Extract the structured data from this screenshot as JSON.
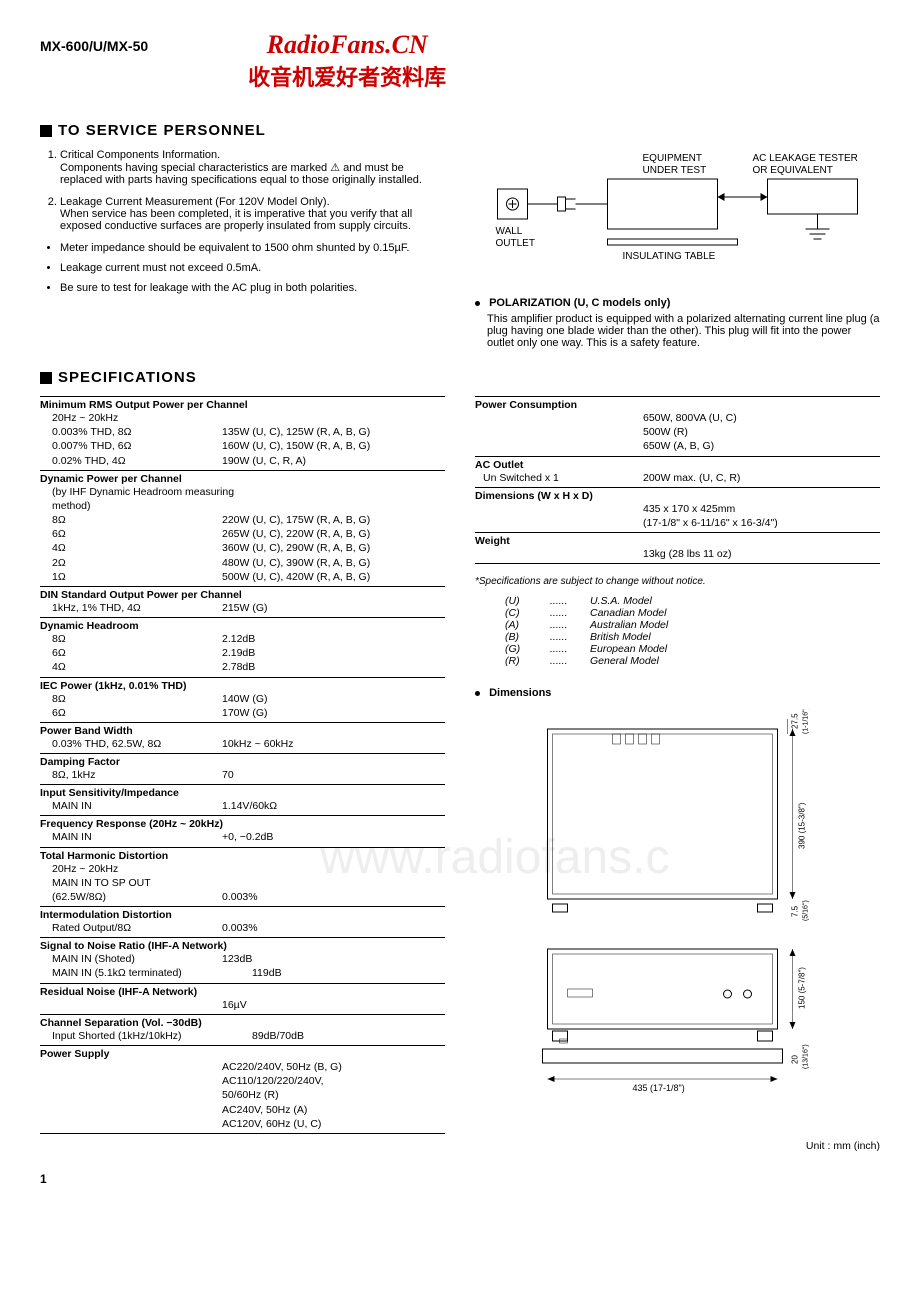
{
  "header": {
    "model": "MX-600/U/MX-50",
    "watermark_main": "RadioFans.CN",
    "watermark_sub": "收音机爱好者资料库"
  },
  "bg_watermark": "www.radiofans.c",
  "sections": {
    "service_title": "TO SERVICE PERSONNEL",
    "spec_title": "SPECIFICATIONS"
  },
  "service": {
    "item1_title": "Critical Components Information.",
    "item1_body": "Components having special characteristics are marked ⚠ and must be replaced with parts having specifications equal to those originally installed.",
    "item2_title": "Leakage Current Measurement (For 120V Model Only).",
    "item2_body": "When service has been completed, it is imperative that you verify that all exposed conductive surfaces are properly insulated from supply circuits.",
    "bullet1": "Meter impedance should be equivalent to 1500 ohm shunted by 0.15µF.",
    "bullet2": "Leakage current must not exceed 0.5mA.",
    "bullet3": "Be sure to test for leakage with the AC plug in both polarities."
  },
  "diagram_labels": {
    "equipment": "EQUIPMENT",
    "under_test": "UNDER TEST",
    "ac_leakage": "AC LEAKAGE TESTER",
    "or_equiv": "OR EQUIVALENT",
    "wall": "WALL",
    "outlet": "OUTLET",
    "insulating": "INSULATING TABLE"
  },
  "polarization": {
    "title": "POLARIZATION (U, C models only)",
    "body": "This amplifier product is equipped with a polarized alternating current line plug (a plug having one blade wider than the other). This plug will fit into the power outlet only one way. This is a safety feature."
  },
  "specs_left": [
    {
      "title": "Minimum RMS Output Power per Channel",
      "rows": [
        {
          "l": "20Hz ~ 20kHz",
          "v": ""
        },
        {
          "l": "0.003% THD, 8Ω",
          "v": "135W (U, C), 125W (R, A, B, G)"
        },
        {
          "l": "0.007% THD, 6Ω",
          "v": "160W (U, C), 150W (R, A, B, G)"
        },
        {
          "l": "0.02% THD, 4Ω",
          "v": "190W (U, C, R, A)"
        }
      ]
    },
    {
      "title": "Dynamic Power per Channel",
      "rows": [
        {
          "l": "(by IHF Dynamic Headroom measuring method)",
          "v": "",
          "wide": true
        },
        {
          "l": "8Ω",
          "v": "220W (U, C), 175W (R, A, B, G)"
        },
        {
          "l": "6Ω",
          "v": "265W (U, C), 220W (R, A, B, G)"
        },
        {
          "l": "4Ω",
          "v": "360W (U, C), 290W (R, A, B, G)"
        },
        {
          "l": "2Ω",
          "v": "480W (U, C), 390W (R, A, B, G)"
        },
        {
          "l": "1Ω",
          "v": "500W (U, C), 420W (R, A, B, G)"
        }
      ]
    },
    {
      "title": "DIN Standard Output Power per Channel",
      "rows": [
        {
          "l": "1kHz, 1% THD, 4Ω",
          "v": "215W (G)"
        }
      ]
    },
    {
      "title": "Dynamic Headroom",
      "rows": [
        {
          "l": "8Ω",
          "v": "2.12dB"
        },
        {
          "l": "6Ω",
          "v": "2.19dB"
        },
        {
          "l": "4Ω",
          "v": "2.78dB"
        }
      ]
    },
    {
      "title": "IEC Power (1kHz, 0.01% THD)",
      "rows": [
        {
          "l": "8Ω",
          "v": "140W (G)"
        },
        {
          "l": "6Ω",
          "v": "170W (G)"
        }
      ]
    },
    {
      "title": "Power Band Width",
      "rows": [
        {
          "l": "0.03% THD, 62.5W, 8Ω",
          "v": "10kHz ~ 60kHz"
        }
      ]
    },
    {
      "title": "Damping Factor",
      "rows": [
        {
          "l": "8Ω, 1kHz",
          "v": "70"
        }
      ]
    },
    {
      "title": "Input Sensitivity/Impedance",
      "rows": [
        {
          "l": "MAIN IN",
          "v": "1.14V/60kΩ"
        }
      ]
    },
    {
      "title": "Frequency Response (20Hz ~ 20kHz)",
      "rows": [
        {
          "l": "MAIN IN",
          "v": "+0, −0.2dB"
        }
      ]
    },
    {
      "title": "Total Harmonic Distortion",
      "rows": [
        {
          "l": "20Hz ~ 20kHz",
          "v": ""
        },
        {
          "l": "MAIN IN TO SP OUT",
          "v": ""
        },
        {
          "l": "(62.5W/8Ω)",
          "v": "0.003%"
        }
      ]
    },
    {
      "title": "Intermodulation Distortion",
      "rows": [
        {
          "l": "Rated Output/8Ω",
          "v": "0.003%"
        }
      ]
    },
    {
      "title": "Signal to Noise Ratio (IHF-A Network)",
      "rows": [
        {
          "l": "MAIN IN (Shoted)",
          "v": "123dB"
        },
        {
          "l": "MAIN IN (5.1kΩ terminated)",
          "v": "119dB",
          "wide": true
        }
      ]
    },
    {
      "title": "Residual Noise (IHF-A Network)",
      "rows": [
        {
          "l": "",
          "v": "16µV"
        }
      ]
    },
    {
      "title": "Channel Separation (Vol. −30dB)",
      "rows": [
        {
          "l": "Input Shorted (1kHz/10kHz)",
          "v": "89dB/70dB",
          "wide": true
        }
      ]
    },
    {
      "title": "Power Supply",
      "rows": [
        {
          "l": "",
          "v": "AC220/240V, 50Hz (B, G)"
        },
        {
          "l": "",
          "v": "AC110/120/220/240V,"
        },
        {
          "l": "",
          "v": "50/60Hz (R)"
        },
        {
          "l": "",
          "v": "AC240V, 50Hz (A)"
        },
        {
          "l": "",
          "v": "AC120V, 60Hz (U, C)"
        }
      ]
    }
  ],
  "specs_right": [
    {
      "title": "Power Consumption",
      "rows": [
        {
          "l": "",
          "v": "650W, 800VA (U, C)"
        },
        {
          "l": "",
          "v": "500W (R)"
        },
        {
          "l": "",
          "v": "650W (A, B, G)"
        }
      ]
    },
    {
      "title": "AC Outlet",
      "rows": [
        {
          "l": "Un Switched x 1",
          "v": "200W max. (U, C, R)"
        }
      ]
    },
    {
      "title": "Dimensions (W x H x D)",
      "rows": [
        {
          "l": "",
          "v": "435 x 170 x 425mm"
        },
        {
          "l": "",
          "v": "(17-1/8\" x 6-11/16\" x 16-3/4\")"
        }
      ]
    },
    {
      "title": "Weight",
      "rows": [
        {
          "l": "",
          "v": "13kg (28 lbs 11 oz)"
        }
      ]
    }
  ],
  "footnote": "*Specifications are subject to change without notice.",
  "model_legend": [
    {
      "code": "(U)",
      "name": "U.S.A. Model"
    },
    {
      "code": "(C)",
      "name": "Canadian Model"
    },
    {
      "code": "(A)",
      "name": "Australian Model"
    },
    {
      "code": "(B)",
      "name": "British Model"
    },
    {
      "code": "(G)",
      "name": "European Model"
    },
    {
      "code": "(R)",
      "name": "General Model"
    }
  ],
  "dimensions_title": "Dimensions",
  "dim_labels": {
    "d1": "27.5",
    "d1s": "(1-1/16\")",
    "d2": "390 (15-3/8\")",
    "d3": "7.5",
    "d3s": "(5/16\")",
    "d4": "150 (5-7/8\")",
    "d5": "20",
    "d5s": "(13/16\")",
    "dw": "435 (17-1/8\")"
  },
  "unit_label": "Unit : mm (inch)",
  "page_num": "1"
}
